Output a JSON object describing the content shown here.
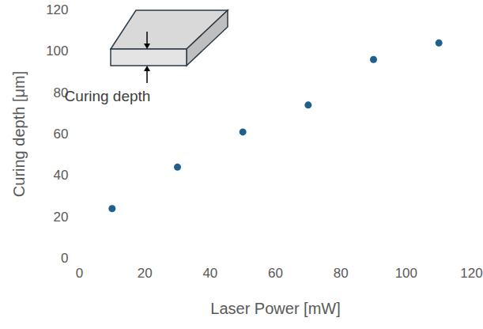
{
  "chart_data": {
    "type": "scatter",
    "x_label": "Laser Power [mW]",
    "y_label": "Curing depth [μm]",
    "annotations": [
      "Curing depth"
    ],
    "x": [
      10,
      30,
      50,
      70,
      90,
      110
    ],
    "values": [
      24,
      44,
      61,
      74,
      96,
      104
    ],
    "color": "#1f5f8b",
    "marker": "circle",
    "xlim": [
      0,
      120
    ],
    "xticks": [
      0,
      20,
      40,
      60,
      80,
      100,
      120
    ],
    "ylim": [
      0,
      120
    ],
    "yticks": [
      0,
      20,
      40,
      60,
      80,
      100,
      120
    ],
    "grid": false
  }
}
